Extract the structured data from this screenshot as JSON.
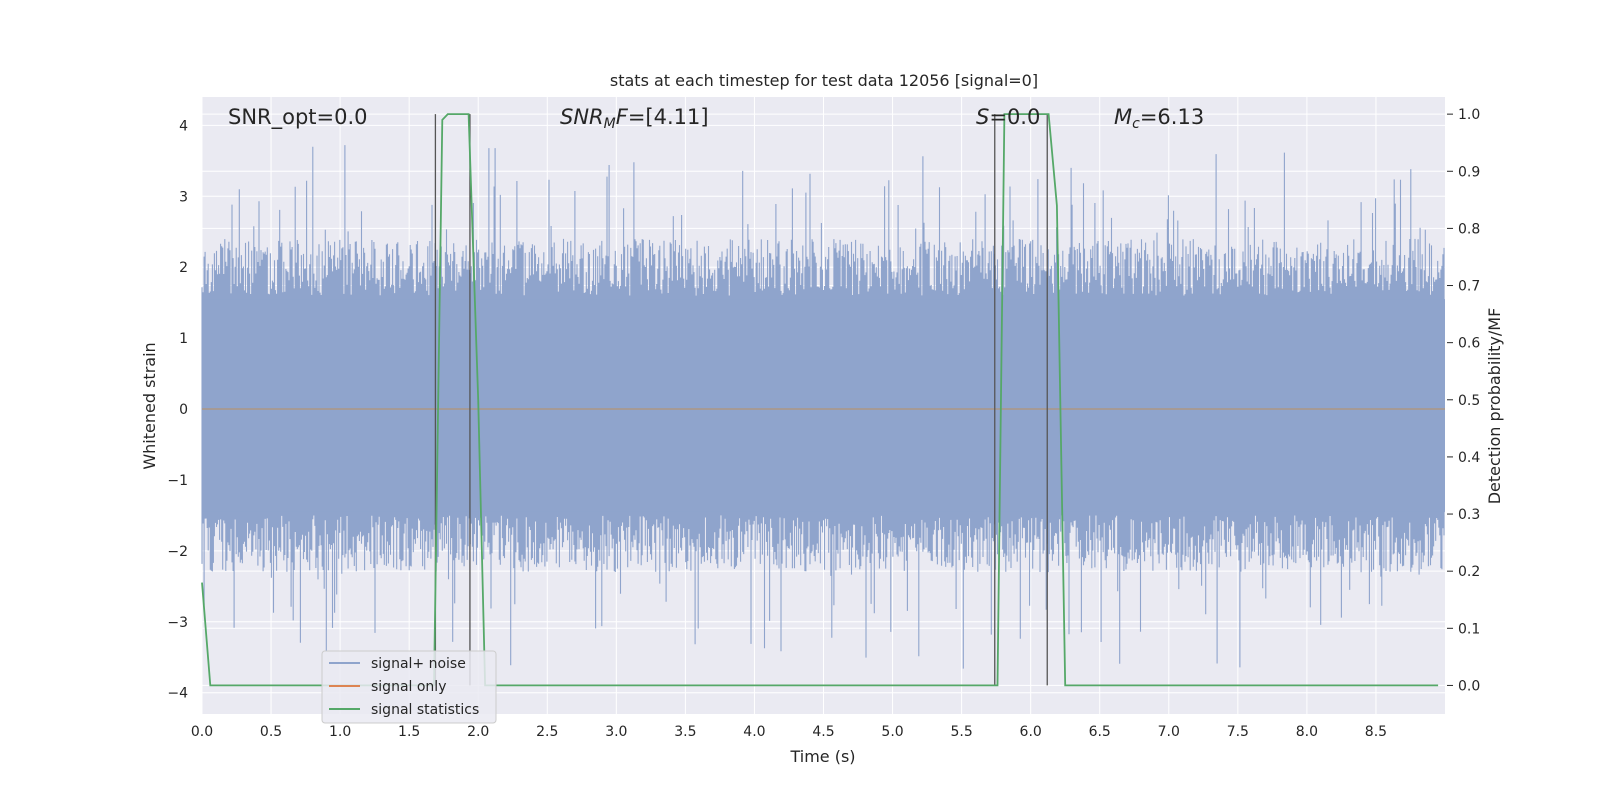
{
  "chart_data": {
    "type": "line",
    "title": "stats at each timestep for test data 12056 [signal=0]",
    "xlabel": "Time (s)",
    "ylabel": "Whitened strain",
    "y2label": "Detection probability/MF",
    "xlim": [
      0.0,
      9.0
    ],
    "ylim": [
      -4.3,
      4.4
    ],
    "y2lim": [
      -0.05,
      1.03
    ],
    "xticks": [
      "0.0",
      "0.5",
      "1.0",
      "1.5",
      "2.0",
      "2.5",
      "3.0",
      "3.5",
      "4.0",
      "4.5",
      "5.0",
      "5.5",
      "6.0",
      "6.5",
      "7.0",
      "7.5",
      "8.0",
      "8.5"
    ],
    "yticks": [
      "4",
      "3",
      "2",
      "1",
      "0",
      "−1",
      "−2",
      "−3",
      "−4"
    ],
    "yticks_values": [
      4,
      3,
      2,
      1,
      0,
      -1,
      -2,
      -3,
      -4
    ],
    "y2ticks": [
      "1.0",
      "0.9",
      "0.8",
      "0.7",
      "0.6",
      "0.5",
      "0.4",
      "0.3",
      "0.2",
      "0.1",
      "0.0"
    ],
    "y2ticks_values": [
      1.0,
      0.9,
      0.8,
      0.7,
      0.6,
      0.5,
      0.4,
      0.3,
      0.2,
      0.1,
      0.0
    ],
    "grid": true,
    "legend_placement": "lower-left",
    "annotations": [
      {
        "text": "SNR_opt=0.0",
        "x": 0.2,
        "y": 4.1
      },
      {
        "text": "SNR_MF=[4.11]",
        "x": 2.6,
        "y": 4.1
      },
      {
        "text": "S=0.0",
        "x": 5.62,
        "y": 4.1
      },
      {
        "text": "M_c=6.13",
        "x": 6.62,
        "y": 4.1
      }
    ],
    "series": [
      {
        "name": "signal+ noise",
        "color": "#8fa4cc",
        "kind": "noise",
        "amplitude_envelope": [
          -3.9,
          3.9
        ]
      },
      {
        "name": "signal only",
        "color": "#dd8452",
        "values_constant": 0.0
      },
      {
        "name": "signal statistics",
        "color": "#55a868",
        "axis": "right",
        "x": [
          0.0,
          0.06,
          0.13,
          1.65,
          1.68,
          1.74,
          1.78,
          1.88,
          1.93,
          2.0,
          2.05,
          2.15,
          5.6,
          5.72,
          5.76,
          5.81,
          5.95,
          6.05,
          6.13,
          6.19,
          6.25,
          6.32,
          8.95
        ],
        "values": [
          0.18,
          0.0,
          0.0,
          0.0,
          0.0,
          0.99,
          1.0,
          1.0,
          1.0,
          0.5,
          0.0,
          0.0,
          0.0,
          0.0,
          0.0,
          1.0,
          1.0,
          1.0,
          1.0,
          0.84,
          0.0,
          0.0,
          0.0
        ]
      }
    ],
    "vlines": [
      1.69,
      1.94,
      5.74,
      6.12
    ],
    "vline_color": "#555555"
  }
}
